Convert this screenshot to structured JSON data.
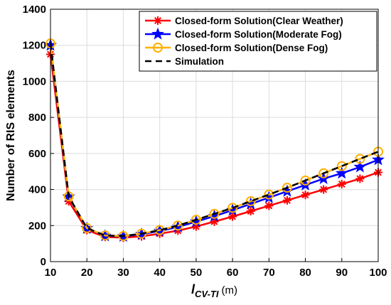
{
  "chart_data": {
    "type": "line",
    "xlabel_main": "l",
    "xlabel_sub": "CV-TI",
    "xlabel_unit": "(m)",
    "ylabel": "Number of RIS elements",
    "xlim": [
      10,
      100
    ],
    "ylim": [
      0,
      1400
    ],
    "xticks": [
      "10",
      "20",
      "30",
      "40",
      "50",
      "60",
      "70",
      "80",
      "90",
      "100"
    ],
    "yticks": [
      "0",
      "200",
      "400",
      "600",
      "800",
      "1000",
      "1200",
      "1400"
    ],
    "grid": true,
    "legend_position": "top-right",
    "x": [
      10,
      15,
      20,
      25,
      30,
      35,
      40,
      45,
      50,
      55,
      60,
      65,
      70,
      75,
      80,
      85,
      90,
      95,
      100
    ],
    "series": [
      {
        "name": "Closed-form Solution(Clear Weather)",
        "color": "#ff0000",
        "marker": "asterisk",
        "values": [
          1150,
          335,
          175,
          137,
          133,
          140,
          155,
          172,
          195,
          222,
          250,
          280,
          310,
          340,
          370,
          400,
          430,
          460,
          495
        ]
      },
      {
        "name": "Closed-form Solution(Moderate Fog)",
        "color": "#0000ff",
        "marker": "star",
        "values": [
          1200,
          360,
          185,
          143,
          140,
          152,
          170,
          192,
          222,
          252,
          285,
          320,
          355,
          390,
          425,
          460,
          490,
          525,
          565
        ]
      },
      {
        "name": "Closed-form Solution(Dense Fog)",
        "color": "#ffb000",
        "marker": "circle",
        "values": [
          1210,
          362,
          186,
          145,
          142,
          155,
          175,
          200,
          232,
          265,
          298,
          335,
          372,
          410,
          450,
          490,
          530,
          570,
          610
        ]
      },
      {
        "name": "Simulation",
        "color": "#000000",
        "marker": "dashed-line",
        "values": [
          1210,
          362,
          186,
          145,
          142,
          155,
          175,
          200,
          232,
          265,
          298,
          335,
          372,
          410,
          450,
          490,
          530,
          570,
          610
        ]
      }
    ]
  }
}
